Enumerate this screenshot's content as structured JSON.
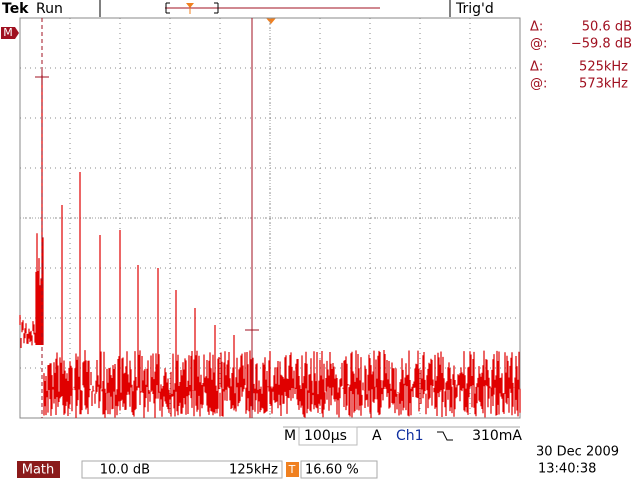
{
  "header": {
    "brand": "Tek",
    "status": "Run",
    "trigger": "Trig'd"
  },
  "channel_marker": "M",
  "readouts": [
    {
      "symbol": "Δ:",
      "value": "50.6 dB"
    },
    {
      "symbol": "@:",
      "value": "−59.8 dB"
    },
    {
      "symbol": "Δ:",
      "value": "525kHz"
    },
    {
      "symbol": "@:",
      "value": "573kHz"
    }
  ],
  "footer": {
    "timebase_label": "M",
    "timebase": "100µs",
    "trigger_label": "A",
    "trigger_source": "Ch1",
    "trigger_level": "310mA",
    "math_label": "Math",
    "math_scale": "10.0 dB",
    "math_freq": "125kHz",
    "trigger_pos_icon": "T",
    "trigger_pos": "16.60 %",
    "date": "30 Dec 2009",
    "time": "13:40:38"
  }
}
